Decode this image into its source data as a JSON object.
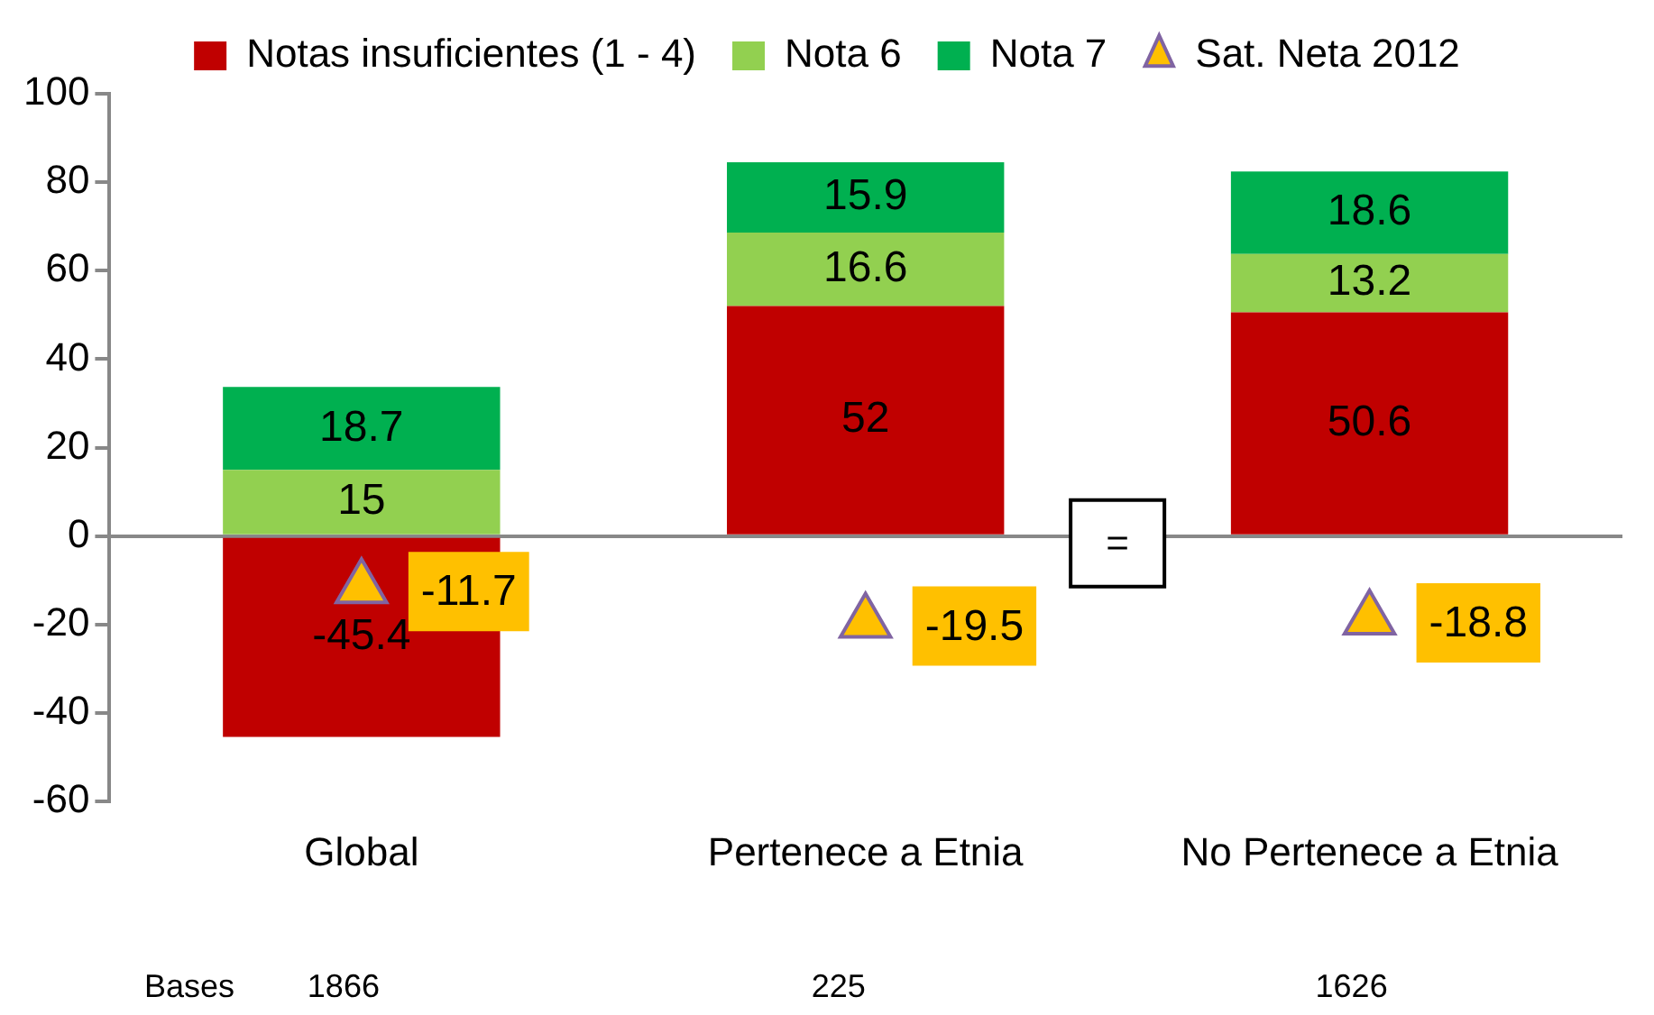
{
  "chart_data": {
    "type": "bar",
    "stacked": true,
    "categories": [
      "Global",
      "Pertenece a Etnia",
      "No Pertenece a Etnia"
    ],
    "series": [
      {
        "name": "Notas insuficientes (1 - 4)",
        "color": "#c00000",
        "values": [
          -45.4,
          52,
          50.6
        ]
      },
      {
        "name": "Nota 6",
        "color": "#92d050",
        "values": [
          15,
          16.6,
          13.2
        ]
      },
      {
        "name": "Nota 7",
        "color": "#00b050",
        "values": [
          18.7,
          15.9,
          18.6
        ]
      },
      {
        "name": "Sat. Neta 2012",
        "type": "scatter",
        "color": "#ffc000",
        "values": [
          -11.7,
          -19.5,
          -18.8
        ],
        "marker": "triangle"
      }
    ],
    "ylim": [
      -60,
      100
    ],
    "yticks": [
      -60,
      -40,
      -20,
      0,
      20,
      40,
      60,
      80,
      100
    ],
    "legend": "top",
    "data_labels": true,
    "annotations": [
      "=",
      "Bases",
      "1866",
      "225",
      "1626"
    ]
  }
}
